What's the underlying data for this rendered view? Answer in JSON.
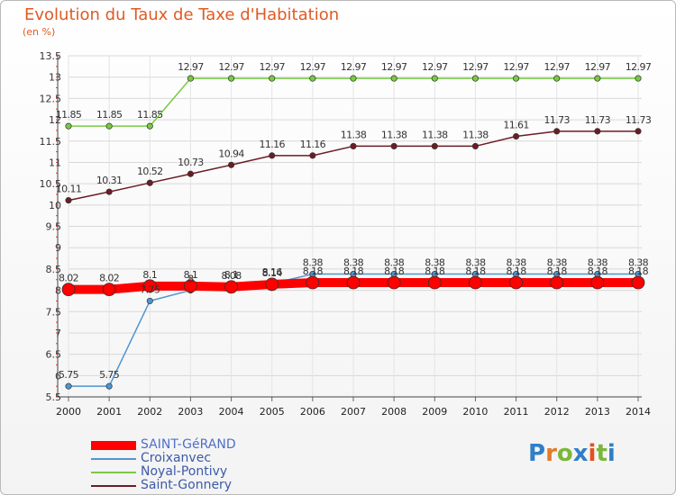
{
  "title": "Evolution du Taux de Taxe d'Habitation",
  "unit_label": "(en %)",
  "brand": {
    "name": "Proxiti",
    "letters": [
      "P",
      "r",
      "o",
      "x",
      "i",
      "t",
      "i"
    ],
    "letter_colors": [
      "#2f7fc7",
      "#e47b2a",
      "#7ab73a",
      "#2f7fc7",
      "#e84e1b",
      "#7ab73a",
      "#2f7fc7"
    ]
  },
  "chart_data": {
    "type": "line",
    "title": "Evolution du Taux de Taxe d'Habitation",
    "ylabel": "(en %)",
    "xlabel": "",
    "x": [
      "2000",
      "2001",
      "2002",
      "2003",
      "2004",
      "2005",
      "2006",
      "2007",
      "2008",
      "2009",
      "2010",
      "2011",
      "2012",
      "2013",
      "2014"
    ],
    "ylim": [
      5.5,
      13.5
    ],
    "yticks": [
      "5.5",
      "6",
      "6.5",
      "7",
      "7.5",
      "8",
      "8.5",
      "9",
      "9.5",
      "10",
      "10.5",
      "11",
      "11.5",
      "12",
      "12.5",
      "13",
      "13.5"
    ],
    "grid": true,
    "legend_position": "bottom-left",
    "series": [
      {
        "name": "SAINT-GéRAND",
        "color": "#ff0000",
        "values": [
          8.02,
          8.02,
          8.1,
          8.1,
          8.08,
          8.14,
          8.18,
          8.18,
          8.18,
          8.18,
          8.18,
          8.18,
          8.18,
          8.18,
          8.18
        ],
        "labels": [
          "8.02",
          "8.02",
          "8.1",
          "8.1",
          "8.08",
          "8.14",
          "8.18",
          "8.18",
          "8.18",
          "8.18",
          "8.18",
          "8.18",
          "8.18",
          "8.18",
          "8.18"
        ]
      },
      {
        "name": "Croixanvec",
        "color": "#4f95cf",
        "values": [
          5.75,
          5.75,
          7.75,
          8,
          8.1,
          8.16,
          8.38,
          8.38,
          8.38,
          8.38,
          8.38,
          8.38,
          8.38,
          8.38,
          8.38
        ],
        "labels": [
          "5.75",
          "5.75",
          "7.75",
          "8",
          "8.1",
          "8.16",
          "8.38",
          "8.38",
          "8.38",
          "8.38",
          "8.38",
          "8.38",
          "8.38",
          "8.38",
          "8.38"
        ]
      },
      {
        "name": "Noyal-Pontivy",
        "color": "#7ac943",
        "values": [
          11.85,
          11.85,
          11.85,
          12.97,
          12.97,
          12.97,
          12.97,
          12.97,
          12.97,
          12.97,
          12.97,
          12.97,
          12.97,
          12.97,
          12.97
        ],
        "labels": [
          "11.85",
          "11.85",
          "11.85",
          "12.97",
          "12.97",
          "12.97",
          "12.97",
          "12.97",
          "12.97",
          "12.97",
          "12.97",
          "12.97",
          "12.97",
          "12.97",
          "12.97"
        ]
      },
      {
        "name": "Saint-Gonnery",
        "color": "#6b1d24",
        "values": [
          10.11,
          10.31,
          10.52,
          10.73,
          10.94,
          11.16,
          11.16,
          11.38,
          11.38,
          11.38,
          11.38,
          11.61,
          11.73,
          11.73,
          11.73
        ],
        "labels": [
          "10.11",
          "10.31",
          "10.52",
          "10.73",
          "10.94",
          "11.16",
          "11.16",
          "11.38",
          "11.38",
          "11.38",
          "11.38",
          "11.61",
          "11.73",
          "11.73",
          "11.73"
        ]
      }
    ]
  }
}
